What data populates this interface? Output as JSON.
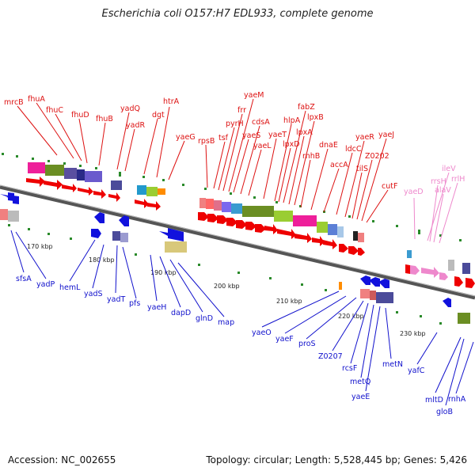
{
  "title": "Escherichia coli O157:H7 EDL933, complete genome",
  "footer": {
    "accession": "Accession: NC_002655",
    "summary": "Topology: circular; Length: 5,528,445 bp; Genes: 5,426"
  },
  "colors": {
    "forward_label": "#dd1111",
    "reverse_label": "#1111cc",
    "rna_label": "#ee88cc",
    "backbone": "#666666",
    "gc_ticks": "#228822"
  },
  "ticks": [
    "170 kbp",
    "180 kbp",
    "190 kbp",
    "200 kbp",
    "210 kbp",
    "220 kbp",
    "230 kbp"
  ],
  "forward_genes": [
    "mrcB",
    "fhuA",
    "fhuC",
    "fhuD",
    "fhuB",
    "yadQ",
    "yadR",
    "dgt",
    "htrA",
    "yaeG",
    "rpsB",
    "tsf",
    "pyrH",
    "frr",
    "yaeM",
    "yaeS",
    "cdsA",
    "yaeL",
    "yaeT",
    "hlpA",
    "lpxD",
    "fabZ",
    "lpxA",
    "lpxB",
    "rnhB",
    "dnaE",
    "accA",
    "ldcC",
    "yaeR",
    "tilS",
    "Z0202",
    "yaeJ",
    "cutF"
  ],
  "rna_genes": [
    "yaeD",
    "ileV",
    "rrsH",
    "alaV",
    "rrlH"
  ],
  "reverse_genes": [
    "sfsA",
    "yadP",
    "hemL",
    "yadS",
    "yadT",
    "pfs",
    "yaeH",
    "dapD",
    "glnD",
    "map",
    "yaeO",
    "yaeF",
    "proS",
    "Z0207",
    "rcsF",
    "metQ",
    "yaeE",
    "metN",
    "yafC",
    "mltD",
    "gloB",
    "rnhA"
  ]
}
